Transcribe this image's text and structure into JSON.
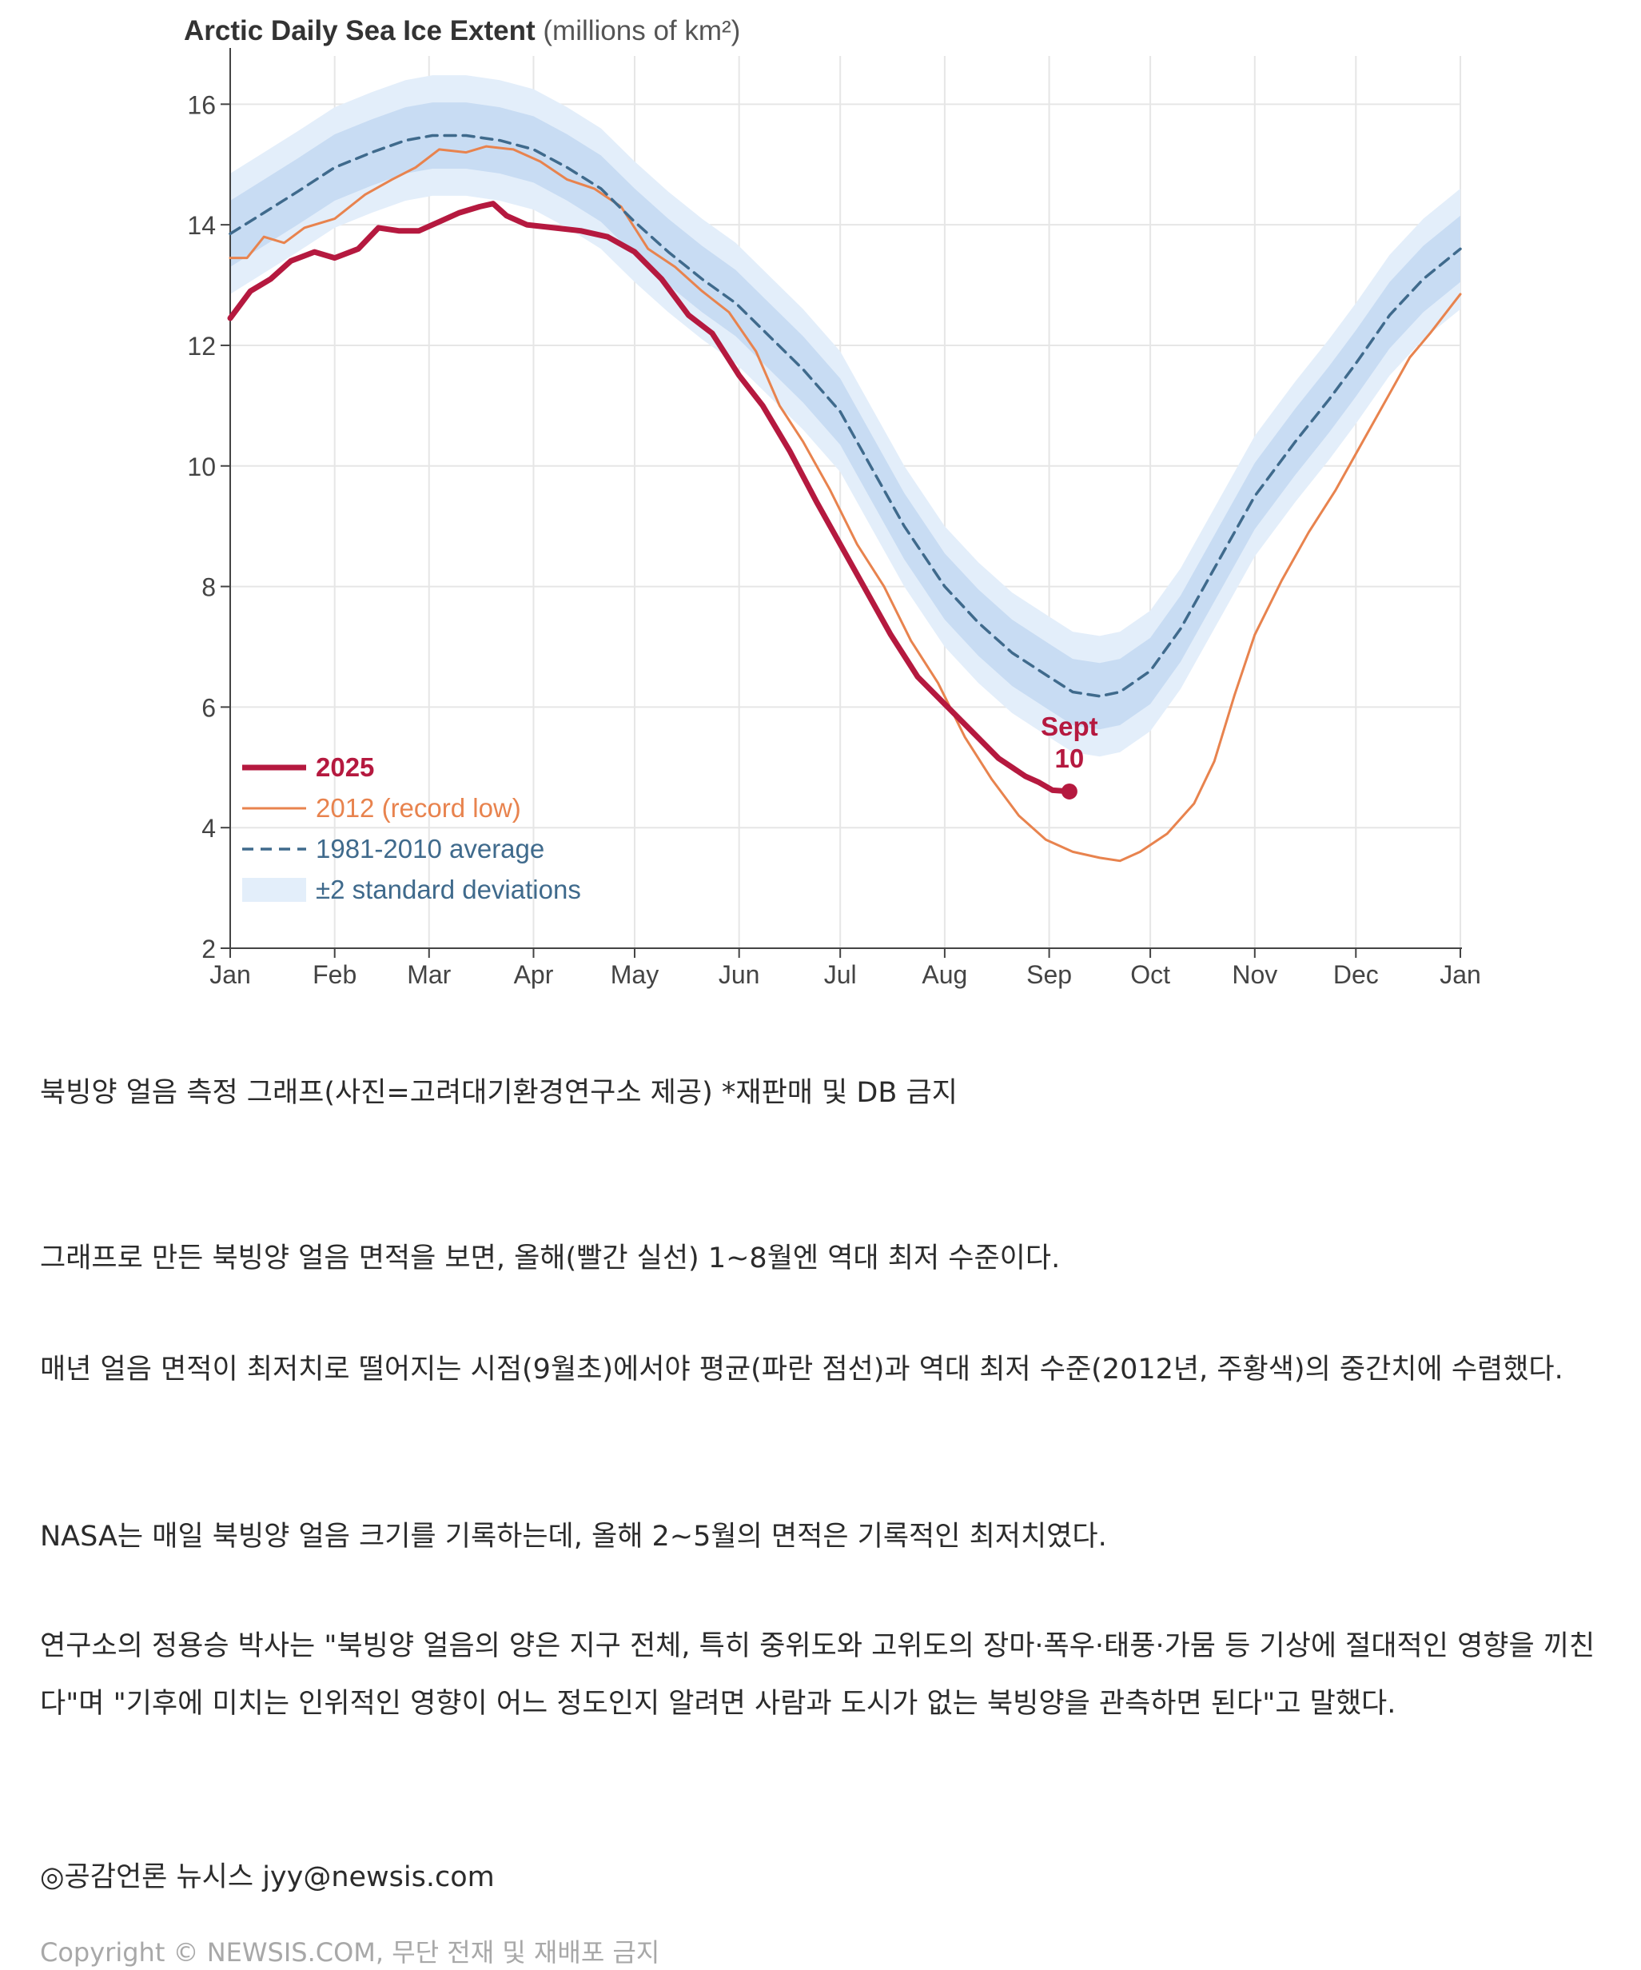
{
  "chart_data": {
    "type": "line",
    "title": "Arctic Daily Sea Ice Extent",
    "title_unit": "(millions of km²)",
    "months": [
      "Jan",
      "Feb",
      "Mar",
      "Apr",
      "May",
      "Jun",
      "Jul",
      "Aug",
      "Sep",
      "Oct",
      "Nov",
      "Dec",
      "Jan"
    ],
    "month_days": [
      0,
      31,
      59,
      90,
      120,
      151,
      181,
      212,
      243,
      273,
      304,
      334,
      365
    ],
    "ylim": [
      2,
      16.8
    ],
    "yticks": [
      2,
      4,
      6,
      8,
      10,
      12,
      14,
      16
    ],
    "xlim": [
      0,
      365
    ],
    "grid": true,
    "legend_position": "bottom-left",
    "series": [
      {
        "name": "2025",
        "color": "#b5193f",
        "style": "thick",
        "points": [
          [
            0,
            12.45
          ],
          [
            6,
            12.9
          ],
          [
            12,
            13.1
          ],
          [
            18,
            13.4
          ],
          [
            25,
            13.55
          ],
          [
            31,
            13.45
          ],
          [
            38,
            13.6
          ],
          [
            44,
            13.95
          ],
          [
            50,
            13.9
          ],
          [
            56,
            13.9
          ],
          [
            62,
            14.05
          ],
          [
            68,
            14.2
          ],
          [
            74,
            14.3
          ],
          [
            78,
            14.35
          ],
          [
            82,
            14.15
          ],
          [
            88,
            14.0
          ],
          [
            96,
            13.95
          ],
          [
            104,
            13.9
          ],
          [
            112,
            13.8
          ],
          [
            120,
            13.55
          ],
          [
            128,
            13.1
          ],
          [
            136,
            12.5
          ],
          [
            143,
            12.2
          ],
          [
            151,
            11.5
          ],
          [
            158,
            11.0
          ],
          [
            166,
            10.25
          ],
          [
            174,
            9.4
          ],
          [
            181,
            8.7
          ],
          [
            188,
            8.0
          ],
          [
            196,
            7.2
          ],
          [
            204,
            6.5
          ],
          [
            212,
            6.05
          ],
          [
            220,
            5.6
          ],
          [
            228,
            5.15
          ],
          [
            236,
            4.85
          ],
          [
            240,
            4.75
          ],
          [
            244,
            4.62
          ],
          [
            249,
            4.6
          ]
        ]
      },
      {
        "name": "2012 (record low)",
        "color": "#e8834e",
        "style": "thin",
        "points": [
          [
            0,
            13.45
          ],
          [
            5,
            13.45
          ],
          [
            10,
            13.8
          ],
          [
            16,
            13.7
          ],
          [
            22,
            13.95
          ],
          [
            31,
            14.1
          ],
          [
            40,
            14.5
          ],
          [
            48,
            14.75
          ],
          [
            55,
            14.95
          ],
          [
            62,
            15.25
          ],
          [
            70,
            15.2
          ],
          [
            76,
            15.3
          ],
          [
            84,
            15.25
          ],
          [
            92,
            15.05
          ],
          [
            100,
            14.75
          ],
          [
            108,
            14.6
          ],
          [
            116,
            14.3
          ],
          [
            124,
            13.6
          ],
          [
            132,
            13.3
          ],
          [
            140,
            12.9
          ],
          [
            148,
            12.55
          ],
          [
            156,
            11.9
          ],
          [
            163,
            11.0
          ],
          [
            170,
            10.4
          ],
          [
            178,
            9.6
          ],
          [
            186,
            8.7
          ],
          [
            194,
            8.0
          ],
          [
            202,
            7.1
          ],
          [
            210,
            6.4
          ],
          [
            218,
            5.5
          ],
          [
            226,
            4.8
          ],
          [
            234,
            4.2
          ],
          [
            242,
            3.8
          ],
          [
            250,
            3.6
          ],
          [
            258,
            3.5
          ],
          [
            264,
            3.45
          ],
          [
            270,
            3.6
          ],
          [
            278,
            3.9
          ],
          [
            286,
            4.4
          ],
          [
            292,
            5.1
          ],
          [
            298,
            6.2
          ],
          [
            304,
            7.2
          ],
          [
            312,
            8.1
          ],
          [
            320,
            8.9
          ],
          [
            328,
            9.6
          ],
          [
            336,
            10.4
          ],
          [
            344,
            11.2
          ],
          [
            350,
            11.8
          ],
          [
            356,
            12.2
          ],
          [
            365,
            12.85
          ]
        ]
      },
      {
        "name": "1981-2010 average",
        "color": "#3f6a8c",
        "style": "dashed",
        "points": [
          [
            0,
            13.85
          ],
          [
            10,
            14.2
          ],
          [
            20,
            14.55
          ],
          [
            31,
            14.95
          ],
          [
            42,
            15.2
          ],
          [
            52,
            15.4
          ],
          [
            60,
            15.48
          ],
          [
            70,
            15.48
          ],
          [
            80,
            15.4
          ],
          [
            90,
            15.25
          ],
          [
            100,
            14.95
          ],
          [
            110,
            14.6
          ],
          [
            120,
            14.05
          ],
          [
            130,
            13.55
          ],
          [
            140,
            13.1
          ],
          [
            150,
            12.7
          ],
          [
            160,
            12.15
          ],
          [
            170,
            11.6
          ],
          [
            181,
            10.9
          ],
          [
            190,
            10.0
          ],
          [
            200,
            9.0
          ],
          [
            212,
            8.0
          ],
          [
            222,
            7.4
          ],
          [
            232,
            6.9
          ],
          [
            243,
            6.5
          ],
          [
            250,
            6.25
          ],
          [
            258,
            6.18
          ],
          [
            264,
            6.25
          ],
          [
            273,
            6.6
          ],
          [
            282,
            7.3
          ],
          [
            292,
            8.3
          ],
          [
            304,
            9.5
          ],
          [
            316,
            10.4
          ],
          [
            326,
            11.1
          ],
          [
            334,
            11.7
          ],
          [
            344,
            12.5
          ],
          [
            354,
            13.1
          ],
          [
            365,
            13.6
          ]
        ]
      }
    ],
    "std_band": {
      "name": "±2 standard deviations",
      "color": "#c8dcf3"
    },
    "annotation": {
      "line1": "Sept",
      "line2": "10",
      "day": 249,
      "value": 4.6,
      "color": "#b5193f"
    }
  },
  "caption": "북빙양 얼음 측정 그래프(사진=고려대기환경연구소 제공) *재판매 및 DB 금지",
  "paragraphs": [
    "그래프로 만든 북빙양 얼음 면적을 보면, 올해(빨간 실선) 1~8월엔 역대 최저 수준이다.",
    "매년 얼음 면적이 최저치로 떨어지는 시점(9월초)에서야 평균(파란 점선)과 역대 최저 수준(2012년, 주황색)의 중간치에 수렴했다.",
    "NASA는 매일 북빙양 얼음 크기를 기록하는데, 올해 2~5월의 면적은 기록적인 최저치였다.",
    "연구소의 정용승 박사는 \"북빙양 얼음의 양은 지구 전체, 특히 중위도와 고위도의 장마·폭우·태풍·가뭄 등 기상에 절대적인 영향을 끼친다\"며 \"기후에 미치는 인위적인 영향이 어느 정도인지 알려면 사람과 도시가 없는 북빙양을 관측하면 된다\"고 말했다."
  ],
  "byline": "◎공감언론 뉴시스 jyy@newsis.com",
  "copyright": "Copyright © NEWSIS.COM, 무단 전재 및 재배포 금지"
}
